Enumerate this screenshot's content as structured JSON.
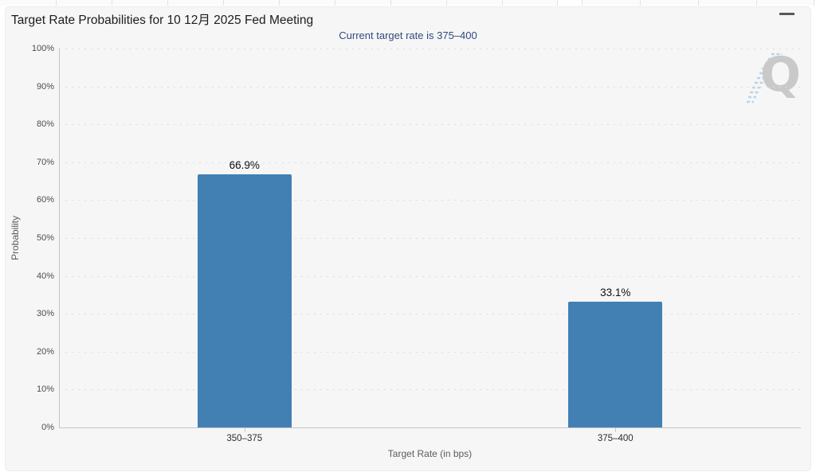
{
  "header": {
    "menu_icon": "hamburger-icon"
  },
  "watermark": {
    "letter": "Q",
    "name": "quikstrike-logo",
    "letter_color": "#c9c9c9",
    "hatch_color": "#b7d4ea"
  },
  "chart_data": {
    "type": "bar",
    "title": "Target Rate Probabilities for 10 12月 2025 Fed Meeting",
    "subtitle": "Current target rate is 375–400",
    "categories": [
      "350–375",
      "375–400"
    ],
    "values": [
      66.9,
      33.1
    ],
    "value_labels": [
      "66.9%",
      "33.1%"
    ],
    "xlabel": "Target Rate (in bps)",
    "ylabel": "Probability",
    "ylim": [
      0,
      100
    ],
    "ytick_step": 10,
    "ytick_suffix": "%",
    "grid": "dotted horizontal gridlines at each 10%",
    "legend": "none",
    "bar_color": "#4280b4",
    "background_color": "#f6f6f7",
    "subtitle_color": "#334a7c"
  }
}
